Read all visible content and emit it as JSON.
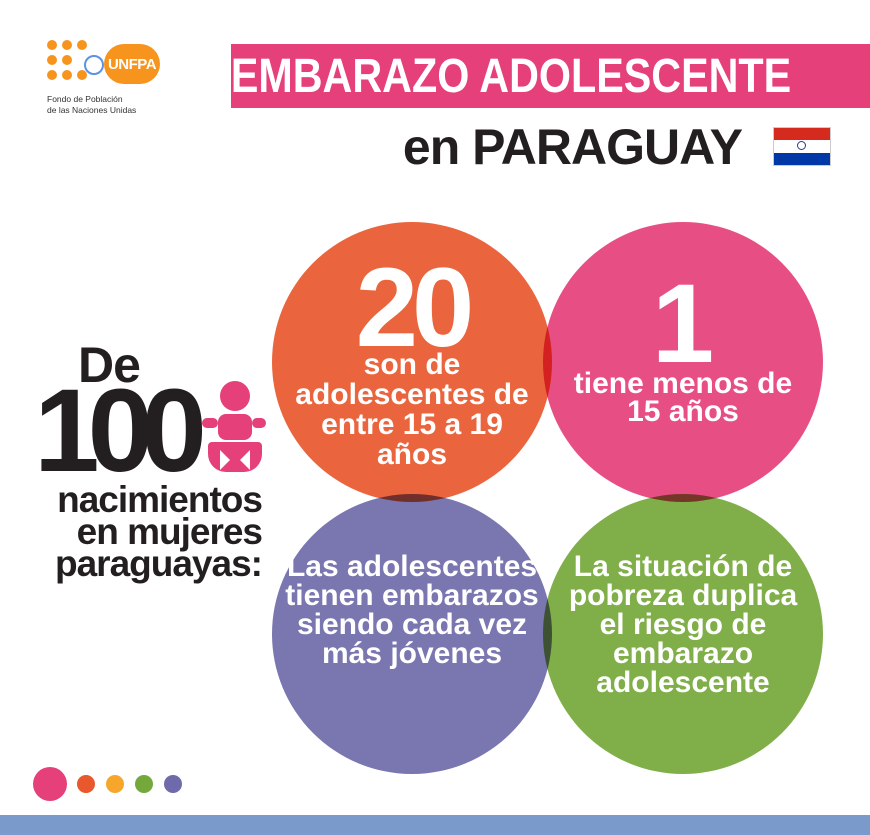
{
  "logo": {
    "brand": "UNFPA",
    "line1": "Fondo de Población",
    "line2": "de las Naciones Unidas",
    "color": "#f7941d"
  },
  "header": {
    "title": "EMBARAZO ADOLESCENTE",
    "subtitle": "en PARAGUAY",
    "title_bg": "#e5407a",
    "flag_colors": [
      "#d52b1e",
      "#ffffff",
      "#0038a8"
    ]
  },
  "statement": {
    "de": "De",
    "hundred": "100",
    "rest": "nacimientos en mujeres paraguayas:",
    "icon": "baby-icon"
  },
  "circles": {
    "orange": {
      "big": "20",
      "text": "son de adolescentes de entre 15 a 19 años",
      "color": "#e9582c"
    },
    "pink": {
      "big": "1",
      "text": "tiene menos de 15 años",
      "color": "#e5407a"
    },
    "purple": {
      "text": "Las adolescentes tienen embarazos siendo cada vez más jóvenes",
      "color": "#6f6aa9"
    },
    "green": {
      "text": "La situación de pobreza duplica el riesgo de embarazo adolescente",
      "color": "#75a83a"
    }
  },
  "footer": {
    "dot_colors": [
      "#e5407a",
      "#e9582c",
      "#f6a72b",
      "#75a83a",
      "#6f6aa9"
    ],
    "bar_color": "#7a9acb"
  }
}
